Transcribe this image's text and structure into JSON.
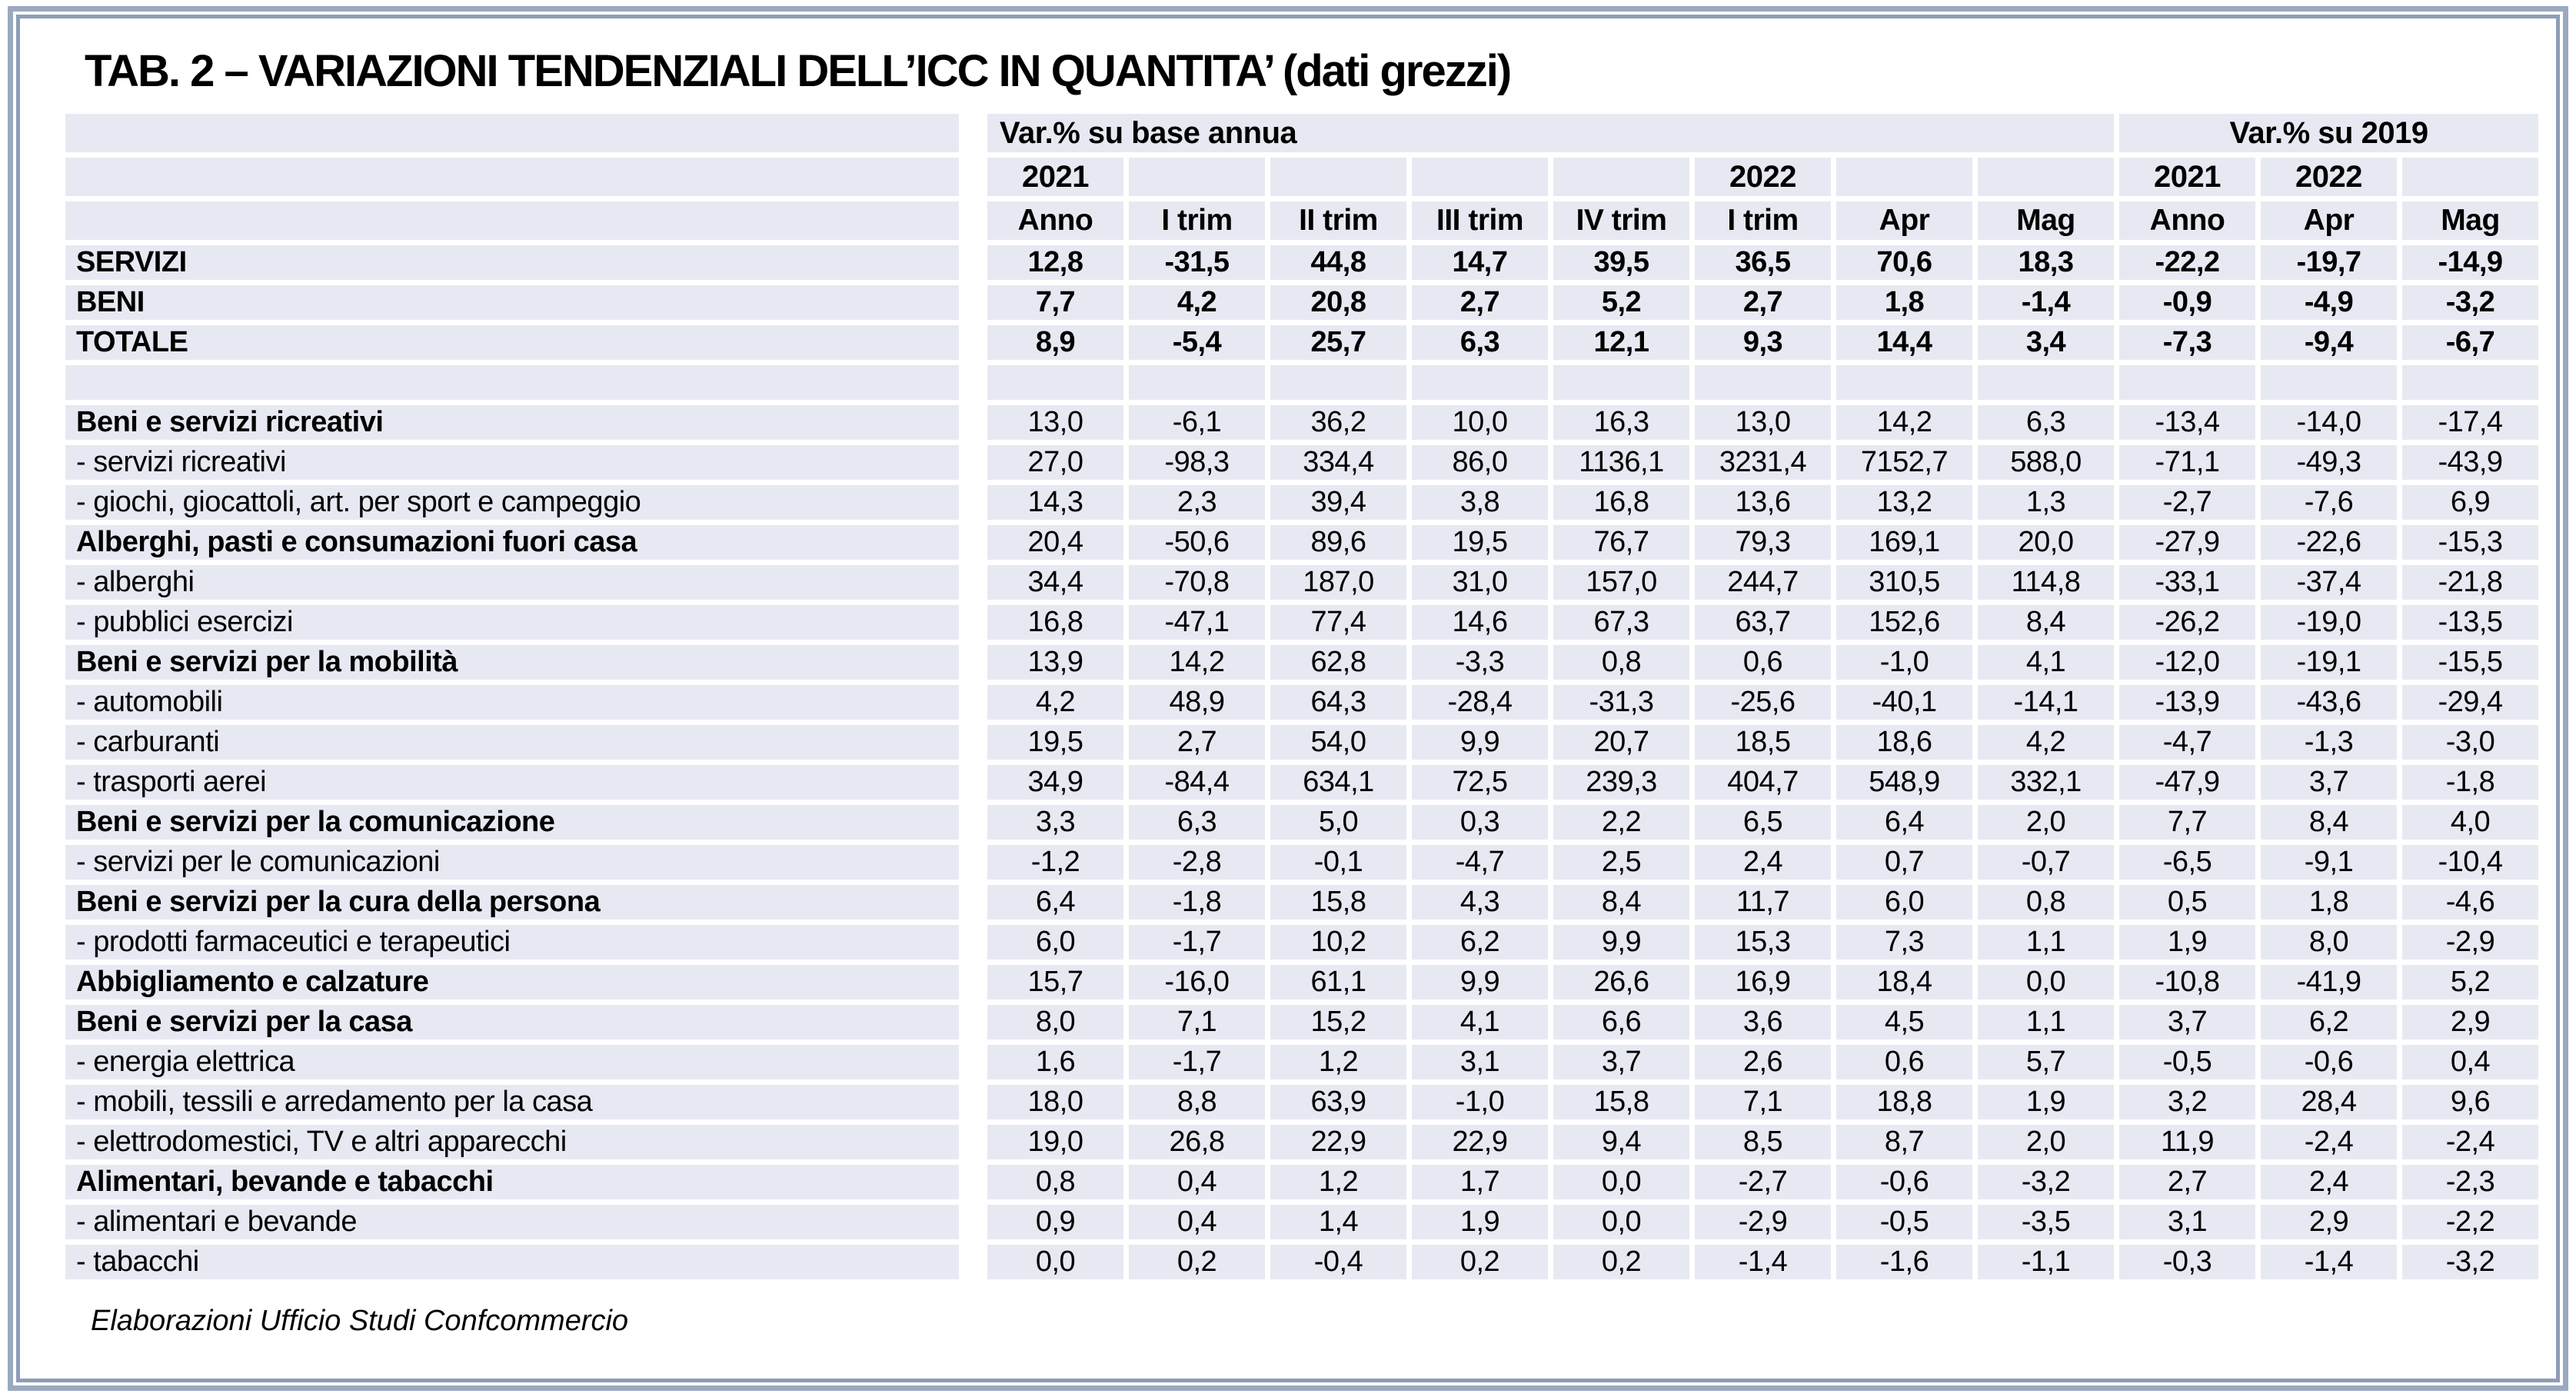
{
  "title": "TAB. 2 – VARIAZIONI TENDENZIALI DELL’ICC IN QUANTITA’ (dati grezzi)",
  "footer": "Elaborazioni Ufficio Studi Confcommercio",
  "colors": {
    "cell_bg": "#e7e9f2",
    "frame_outer": "#9aa9bf",
    "frame_inner": "#8d9db5",
    "text_color": "#000000",
    "page_bg": "#ffffff"
  },
  "table": {
    "group_headers": [
      {
        "label": "Var.% su base annua",
        "span": 8
      },
      {
        "label": "Var.% su 2019",
        "span": 3
      }
    ],
    "year_row": [
      "2021",
      "",
      "",
      "",
      "",
      "2022",
      "",
      "",
      "2021",
      "2022",
      ""
    ],
    "col_headers": [
      "Anno",
      "I trim",
      "II trim",
      "III trim",
      "IV trim",
      "I trim",
      "Apr",
      "Mag",
      "Anno",
      "Apr",
      "Mag"
    ],
    "rows": [
      {
        "label": "SERVIZI",
        "style": "total",
        "values": [
          "12,8",
          "-31,5",
          "44,8",
          "14,7",
          "39,5",
          "36,5",
          "70,6",
          "18,3",
          "-22,2",
          "-19,7",
          "-14,9"
        ]
      },
      {
        "label": "BENI",
        "style": "total",
        "values": [
          "7,7",
          "4,2",
          "20,8",
          "2,7",
          "5,2",
          "2,7",
          "1,8",
          "-1,4",
          "-0,9",
          "-4,9",
          "-3,2"
        ]
      },
      {
        "label": "TOTALE",
        "style": "total",
        "values": [
          "8,9",
          "-5,4",
          "25,7",
          "6,3",
          "12,1",
          "9,3",
          "14,4",
          "3,4",
          "-7,3",
          "-9,4",
          "-6,7"
        ]
      },
      {
        "label": "",
        "style": "spacer",
        "values": [
          "",
          "",
          "",
          "",
          "",
          "",
          "",
          "",
          "",
          "",
          ""
        ]
      },
      {
        "label": "Beni e servizi ricreativi",
        "style": "category",
        "values": [
          "13,0",
          "-6,1",
          "36,2",
          "10,0",
          "16,3",
          "13,0",
          "14,2",
          "6,3",
          "-13,4",
          "-14,0",
          "-17,4"
        ]
      },
      {
        "label": "- servizi ricreativi",
        "style": "sub",
        "values": [
          "27,0",
          "-98,3",
          "334,4",
          "86,0",
          "1136,1",
          "3231,4",
          "7152,7",
          "588,0",
          "-71,1",
          "-49,3",
          "-43,9"
        ]
      },
      {
        "label": "- giochi, giocattoli, art. per sport e campeggio",
        "style": "sub",
        "values": [
          "14,3",
          "2,3",
          "39,4",
          "3,8",
          "16,8",
          "13,6",
          "13,2",
          "1,3",
          "-2,7",
          "-7,6",
          "6,9"
        ]
      },
      {
        "label": "Alberghi, pasti e consumazioni fuori casa",
        "style": "category",
        "values": [
          "20,4",
          "-50,6",
          "89,6",
          "19,5",
          "76,7",
          "79,3",
          "169,1",
          "20,0",
          "-27,9",
          "-22,6",
          "-15,3"
        ]
      },
      {
        "label": "- alberghi",
        "style": "sub",
        "values": [
          "34,4",
          "-70,8",
          "187,0",
          "31,0",
          "157,0",
          "244,7",
          "310,5",
          "114,8",
          "-33,1",
          "-37,4",
          "-21,8"
        ]
      },
      {
        "label": "- pubblici esercizi",
        "style": "sub",
        "values": [
          "16,8",
          "-47,1",
          "77,4",
          "14,6",
          "67,3",
          "63,7",
          "152,6",
          "8,4",
          "-26,2",
          "-19,0",
          "-13,5"
        ]
      },
      {
        "label": "Beni e servizi per la mobilità",
        "style": "category",
        "values": [
          "13,9",
          "14,2",
          "62,8",
          "-3,3",
          "0,8",
          "0,6",
          "-1,0",
          "4,1",
          "-12,0",
          "-19,1",
          "-15,5"
        ]
      },
      {
        "label": "- automobili",
        "style": "sub",
        "values": [
          "4,2",
          "48,9",
          "64,3",
          "-28,4",
          "-31,3",
          "-25,6",
          "-40,1",
          "-14,1",
          "-13,9",
          "-43,6",
          "-29,4"
        ]
      },
      {
        "label": "- carburanti",
        "style": "sub",
        "values": [
          "19,5",
          "2,7",
          "54,0",
          "9,9",
          "20,7",
          "18,5",
          "18,6",
          "4,2",
          "-4,7",
          "-1,3",
          "-3,0"
        ]
      },
      {
        "label": "- trasporti aerei",
        "style": "sub",
        "values": [
          "34,9",
          "-84,4",
          "634,1",
          "72,5",
          "239,3",
          "404,7",
          "548,9",
          "332,1",
          "-47,9",
          "3,7",
          "-1,8"
        ]
      },
      {
        "label": "Beni e servizi per la comunicazione",
        "style": "category",
        "values": [
          "3,3",
          "6,3",
          "5,0",
          "0,3",
          "2,2",
          "6,5",
          "6,4",
          "2,0",
          "7,7",
          "8,4",
          "4,0"
        ]
      },
      {
        "label": "- servizi per le comunicazioni",
        "style": "sub",
        "values": [
          "-1,2",
          "-2,8",
          "-0,1",
          "-4,7",
          "2,5",
          "2,4",
          "0,7",
          "-0,7",
          "-6,5",
          "-9,1",
          "-10,4"
        ]
      },
      {
        "label": "Beni e servizi per la cura della persona",
        "style": "category",
        "values": [
          "6,4",
          "-1,8",
          "15,8",
          "4,3",
          "8,4",
          "11,7",
          "6,0",
          "0,8",
          "0,5",
          "1,8",
          "-4,6"
        ]
      },
      {
        "label": "- prodotti farmaceutici e terapeutici",
        "style": "sub",
        "values": [
          "6,0",
          "-1,7",
          "10,2",
          "6,2",
          "9,9",
          "15,3",
          "7,3",
          "1,1",
          "1,9",
          "8,0",
          "-2,9"
        ]
      },
      {
        "label": "Abbigliamento e calzature",
        "style": "category",
        "values": [
          "15,7",
          "-16,0",
          "61,1",
          "9,9",
          "26,6",
          "16,9",
          "18,4",
          "0,0",
          "-10,8",
          "-41,9",
          "5,2"
        ]
      },
      {
        "label": "Beni e servizi per la casa",
        "style": "category",
        "values": [
          "8,0",
          "7,1",
          "15,2",
          "4,1",
          "6,6",
          "3,6",
          "4,5",
          "1,1",
          "3,7",
          "6,2",
          "2,9"
        ]
      },
      {
        "label": "- energia elettrica",
        "style": "sub",
        "values": [
          "1,6",
          "-1,7",
          "1,2",
          "3,1",
          "3,7",
          "2,6",
          "0,6",
          "5,7",
          "-0,5",
          "-0,6",
          "0,4"
        ]
      },
      {
        "label": "- mobili, tessili e arredamento per la casa",
        "style": "sub",
        "values": [
          "18,0",
          "8,8",
          "63,9",
          "-1,0",
          "15,8",
          "7,1",
          "18,8",
          "1,9",
          "3,2",
          "28,4",
          "9,6"
        ]
      },
      {
        "label": "- elettrodomestici, TV e altri apparecchi",
        "style": "sub",
        "values": [
          "19,0",
          "26,8",
          "22,9",
          "22,9",
          "9,4",
          "8,5",
          "8,7",
          "2,0",
          "11,9",
          "-2,4",
          "-2,4"
        ]
      },
      {
        "label": "Alimentari, bevande e tabacchi",
        "style": "category",
        "values": [
          "0,8",
          "0,4",
          "1,2",
          "1,7",
          "0,0",
          "-2,7",
          "-0,6",
          "-3,2",
          "2,7",
          "2,4",
          "-2,3"
        ]
      },
      {
        "label": "- alimentari e bevande",
        "style": "sub",
        "values": [
          "0,9",
          "0,4",
          "1,4",
          "1,9",
          "0,0",
          "-2,9",
          "-0,5",
          "-3,5",
          "3,1",
          "2,9",
          "-2,2"
        ]
      },
      {
        "label": "- tabacchi",
        "style": "sub",
        "values": [
          "0,0",
          "0,2",
          "-0,4",
          "0,2",
          "0,2",
          "-1,4",
          "-1,6",
          "-1,1",
          "-0,3",
          "-1,4",
          "-3,2"
        ]
      }
    ]
  }
}
